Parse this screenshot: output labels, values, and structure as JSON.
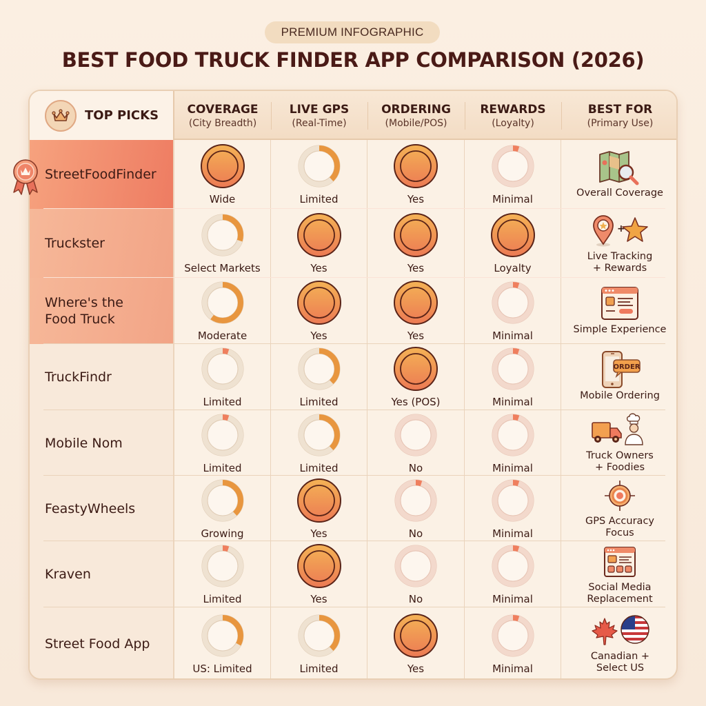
{
  "header": {
    "badge": "PREMIUM INFOGRAPHIC",
    "title": "BEST FOOD TRUCK FINDER APP COMPARISON (2026)"
  },
  "colors": {
    "accent_orange": "#e8964a",
    "accent_coral": "#ee7c62",
    "highlight_top": "#f08a6c",
    "highlight_secondary": "#f4ad8f",
    "background": "#fbefe2",
    "text_dark": "#3b1a14"
  },
  "table": {
    "top_picks_label": "TOP PICKS",
    "columns": [
      {
        "title": "COVERAGE",
        "subtitle": "(City Breadth)"
      },
      {
        "title": "LIVE GPS",
        "subtitle": "(Real-Time)"
      },
      {
        "title": "ORDERING",
        "subtitle": "(Mobile/POS)"
      },
      {
        "title": "REWARDS",
        "subtitle": "(Loyalty)"
      },
      {
        "title": "BEST FOR",
        "subtitle": "(Primary Use)"
      }
    ],
    "legend": {
      "full": "solid coin = full support",
      "partial": "ring arc = partial support",
      "minimal": "small coral tick = minimal/none"
    },
    "rows": [
      {
        "name": "StreetFoodFinder",
        "highlight": "top",
        "badge": "crown-ribbon-icon",
        "coverage": {
          "label": "Wide",
          "level": 1.0
        },
        "gps": {
          "label": "Limited",
          "level": 0.38
        },
        "ordering": {
          "label": "Yes",
          "level": 1.0
        },
        "rewards": {
          "label": "Minimal",
          "level": 0.05
        },
        "best_for": {
          "label": "Overall Coverage",
          "icon": "map-magnifier-icon"
        }
      },
      {
        "name": "Truckster",
        "highlight": "secondary",
        "coverage": {
          "label": "Select Markets",
          "level": 0.3
        },
        "gps": {
          "label": "Yes",
          "level": 1.0
        },
        "ordering": {
          "label": "Yes",
          "level": 1.0
        },
        "rewards": {
          "label": "Loyalty",
          "level": 1.0
        },
        "best_for": {
          "label": "Live Tracking\n+ Rewards",
          "icon": "pin-star-icon"
        }
      },
      {
        "name": "Where's the\nFood Truck",
        "highlight": "secondary",
        "coverage": {
          "label": "Moderate",
          "level": 0.6
        },
        "gps": {
          "label": "Yes",
          "level": 1.0
        },
        "ordering": {
          "label": "Yes",
          "level": 1.0
        },
        "rewards": {
          "label": "Minimal",
          "level": 0.05
        },
        "best_for": {
          "label": "Simple Experience",
          "icon": "browser-window-icon"
        }
      },
      {
        "name": "TruckFindr",
        "highlight": "none",
        "coverage": {
          "label": "Limited",
          "level": 0.05
        },
        "gps": {
          "label": "Limited",
          "level": 0.38
        },
        "ordering": {
          "label": "Yes (POS)",
          "level": 1.0
        },
        "rewards": {
          "label": "Minimal",
          "level": 0.05
        },
        "best_for": {
          "label": "Mobile Ordering",
          "icon": "phone-order-icon",
          "icon_text": "ORDER"
        }
      },
      {
        "name": "Mobile Nom",
        "highlight": "none",
        "coverage": {
          "label": "Limited",
          "level": 0.05
        },
        "gps": {
          "label": "Limited",
          "level": 0.38
        },
        "ordering": {
          "label": "No",
          "level": 0
        },
        "rewards": {
          "label": "Minimal",
          "level": 0.05
        },
        "best_for": {
          "label": "Truck Owners\n+ Foodies",
          "icon": "truck-chef-icon"
        }
      },
      {
        "name": "FeastyWheels",
        "highlight": "none",
        "coverage": {
          "label": "Growing",
          "level": 0.38
        },
        "gps": {
          "label": "Yes",
          "level": 1.0
        },
        "ordering": {
          "label": "No",
          "level": 0.05
        },
        "rewards": {
          "label": "Minimal",
          "level": 0.05
        },
        "best_for": {
          "label": "GPS Accuracy\nFocus",
          "icon": "target-crosshair-icon"
        }
      },
      {
        "name": "Kraven",
        "highlight": "none",
        "coverage": {
          "label": "Limited",
          "level": 0.05
        },
        "gps": {
          "label": "Yes",
          "level": 1.0
        },
        "ordering": {
          "label": "No",
          "level": 0
        },
        "rewards": {
          "label": "Minimal",
          "level": 0.05
        },
        "best_for": {
          "label": "Social Media\nReplacement",
          "icon": "social-feed-icon"
        }
      },
      {
        "name": "Street Food App",
        "highlight": "none",
        "coverage": {
          "label": "US: Limited",
          "level": 0.33
        },
        "gps": {
          "label": "Limited",
          "level": 0.38
        },
        "ordering": {
          "label": "Yes",
          "level": 1.0
        },
        "rewards": {
          "label": "Minimal",
          "level": 0.05
        },
        "best_for": {
          "label": "Canadian +\nSelect US",
          "icon": "canada-us-flags-icon"
        }
      }
    ]
  }
}
